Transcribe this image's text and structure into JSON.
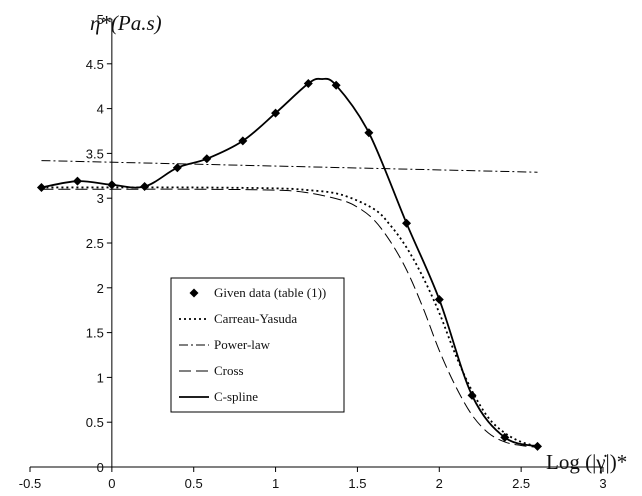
{
  "chart_data": {
    "type": "line",
    "title": "",
    "xlabel": "Log (|γ̇|)*",
    "ylabel": "η*(Pa.s)",
    "xlim": [
      -0.5,
      3
    ],
    "ylim": [
      0,
      5
    ],
    "xticks": [
      "-0.5",
      "0",
      "0.5",
      "1",
      "1.5",
      "2",
      "2.5",
      "3"
    ],
    "yticks": [
      "0",
      "0.5",
      "1",
      "1.5",
      "2",
      "2.5",
      "3",
      "3.5",
      "4",
      "4.5",
      "5"
    ],
    "grid": false,
    "legend_position": "center-left",
    "series": [
      {
        "name": "Given data (table (1))",
        "style": "markers",
        "marker": "diamond",
        "x": [
          -0.43,
          -0.21,
          0.0,
          0.2,
          0.4,
          0.58,
          0.8,
          1.0,
          1.2,
          1.37,
          1.57,
          1.8,
          2.0,
          2.2,
          2.4,
          2.6
        ],
        "y": [
          3.12,
          3.19,
          3.15,
          3.13,
          3.34,
          3.44,
          3.64,
          3.95,
          4.28,
          4.26,
          3.73,
          2.72,
          1.87,
          0.8,
          0.33,
          0.23
        ]
      },
      {
        "name": "Carreau-Yasuda",
        "style": "dotted",
        "x": [
          -0.43,
          0.0,
          0.5,
          1.0,
          1.2,
          1.4,
          1.6,
          1.7,
          1.8,
          1.9,
          2.0,
          2.1,
          2.2,
          2.3,
          2.4,
          2.5,
          2.6
        ],
        "y": [
          3.12,
          3.12,
          3.12,
          3.11,
          3.09,
          3.04,
          2.88,
          2.7,
          2.45,
          2.12,
          1.72,
          1.25,
          0.85,
          0.55,
          0.38,
          0.28,
          0.23
        ]
      },
      {
        "name": "Power-law",
        "style": "dash-dot",
        "x": [
          -0.43,
          2.6
        ],
        "y": [
          3.42,
          3.29
        ]
      },
      {
        "name": "Cross",
        "style": "long-dash",
        "x": [
          -0.43,
          0.0,
          0.5,
          1.0,
          1.2,
          1.4,
          1.5,
          1.6,
          1.7,
          1.8,
          1.9,
          2.0,
          2.1,
          2.2,
          2.3,
          2.4,
          2.5,
          2.6
        ],
        "y": [
          3.1,
          3.1,
          3.1,
          3.09,
          3.06,
          2.98,
          2.9,
          2.76,
          2.52,
          2.2,
          1.78,
          1.3,
          0.9,
          0.58,
          0.38,
          0.28,
          0.24,
          0.22
        ]
      },
      {
        "name": "C-spline",
        "style": "solid",
        "x": [
          -0.43,
          -0.21,
          0.0,
          0.2,
          0.4,
          0.58,
          0.8,
          1.0,
          1.2,
          1.28,
          1.37,
          1.57,
          1.8,
          2.0,
          2.2,
          2.4,
          2.6
        ],
        "y": [
          3.12,
          3.19,
          3.15,
          3.13,
          3.34,
          3.44,
          3.64,
          3.95,
          4.28,
          4.33,
          4.26,
          3.73,
          2.72,
          1.87,
          0.8,
          0.33,
          0.23
        ]
      }
    ]
  }
}
